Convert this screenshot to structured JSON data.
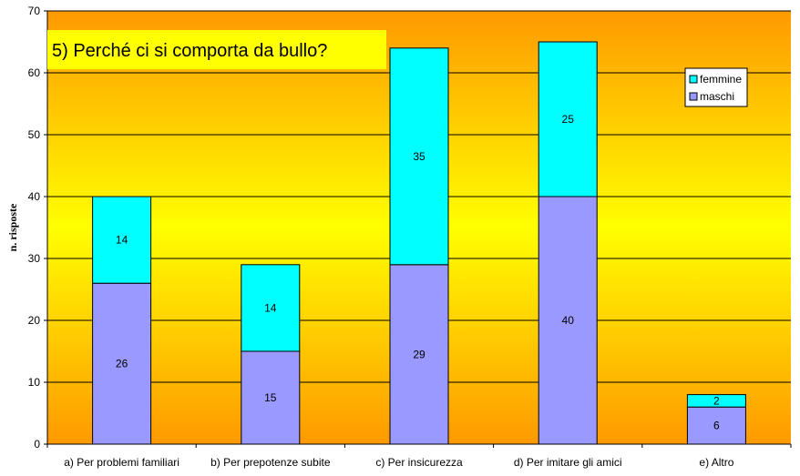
{
  "chart_data": {
    "type": "bar",
    "stacked": true,
    "title": "5) Perché ci si comporta da bullo?",
    "ylabel": "n. risposte",
    "xlabel": "",
    "ylim": [
      0,
      70
    ],
    "yticks": [
      0,
      10,
      20,
      30,
      40,
      50,
      60,
      70
    ],
    "grid": true,
    "legend_position": "top-right",
    "categories": [
      "a) Per problemi familiari",
      "b) Per prepotenze subite",
      "c) Per insicurezza",
      "d) Per imitare gli amici",
      "e) Altro"
    ],
    "series": [
      {
        "name": "maschi",
        "values": [
          26,
          15,
          29,
          40,
          6
        ],
        "color": "#9999ff"
      },
      {
        "name": "femmine",
        "values": [
          14,
          14,
          35,
          25,
          2
        ],
        "color": "#00ffff"
      }
    ],
    "colors": {
      "background_top": "#ff9900",
      "background_mid": "#ffff00",
      "background_bottom": "#ff9900",
      "title_box": "#ffff00"
    }
  }
}
